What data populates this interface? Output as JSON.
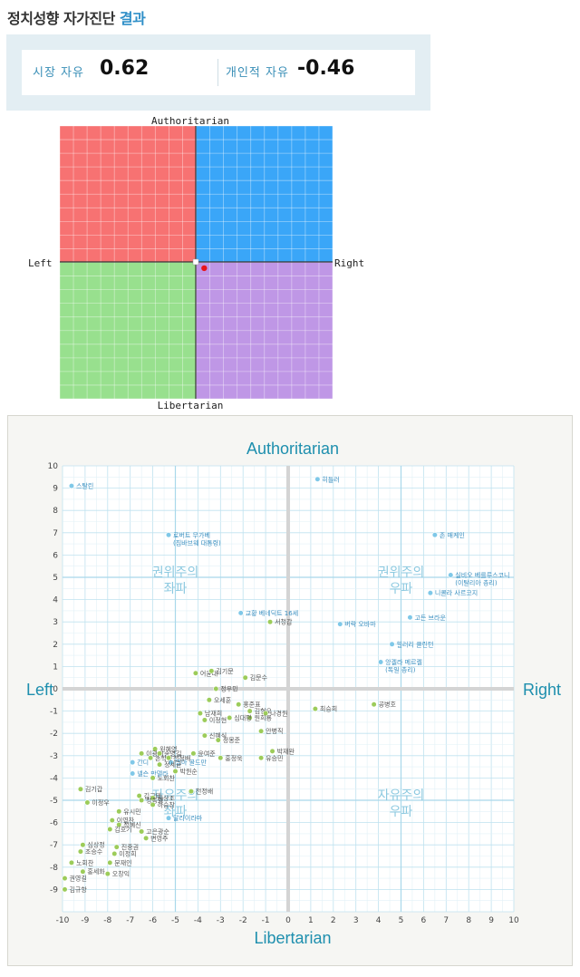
{
  "header": {
    "title_main": "정치성향 자가진단",
    "title_accent": "결과"
  },
  "scores": {
    "market_label": "시장 자유",
    "market_value": "0.62",
    "personal_label": "개인적 자유",
    "personal_value": "-0.46"
  },
  "compass": {
    "top": "Authoritarian",
    "bottom": "Libertarian",
    "left": "Left",
    "right": "Right",
    "colors": {
      "auth_left": "#f77272",
      "auth_right": "#3aa6f8",
      "lib_left": "#98e08e",
      "lib_right": "#bf97e6"
    },
    "marker": {
      "x": 0.62,
      "y": -0.46,
      "color": "#e8141b"
    }
  },
  "chart_data": {
    "type": "scatter",
    "title": "",
    "axis_labels": {
      "top": "Authoritarian",
      "bottom": "Libertarian",
      "left": "Left",
      "right": "Right"
    },
    "xlim": [
      -10,
      10
    ],
    "ylim": [
      -10,
      10
    ],
    "x_ticks": [
      -10,
      -9,
      -8,
      -7,
      -6,
      -5,
      -4,
      -3,
      -2,
      -1,
      0,
      1,
      2,
      3,
      4,
      5,
      6,
      7,
      8,
      9,
      10
    ],
    "y_ticks": [
      10,
      9,
      8,
      7,
      6,
      5,
      4,
      3,
      2,
      1,
      0,
      -1,
      -2,
      -3,
      -4,
      -5,
      -6,
      -7,
      -8,
      -9
    ],
    "grid": true,
    "quadrant_labels": [
      {
        "line1": "권위주의",
        "line2": "좌파",
        "x": -5,
        "y": 5
      },
      {
        "line1": "권위주의",
        "line2": "우파",
        "x": 5,
        "y": 5
      },
      {
        "line1": "자유주의",
        "line2": "좌파",
        "x": -5,
        "y": -5
      },
      {
        "line1": "자유주의",
        "line2": "우파",
        "x": 5,
        "y": -5
      }
    ],
    "series": [
      {
        "color": "#7fc8e8",
        "points": [
          {
            "label": "스탈린",
            "x": -9.6,
            "y": 9.1
          },
          {
            "label": "로버트 무가베",
            "label2": "(짐바브웨 대통령)",
            "x": -5.3,
            "y": 6.9
          },
          {
            "label": "교황 베네딕트 16세",
            "x": -2.1,
            "y": 3.4
          },
          {
            "label": "히틀러",
            "x": 1.3,
            "y": 9.4
          },
          {
            "label": "존 매케인",
            "x": 6.5,
            "y": 6.9
          },
          {
            "label": "실비오 베를루스코니",
            "label2": "(이탈리아 총리)",
            "x": 7.2,
            "y": 5.1
          },
          {
            "label": "니콜라 사르코지",
            "x": 6.3,
            "y": 4.3
          },
          {
            "label": "고든 브라운",
            "x": 5.4,
            "y": 3.2
          },
          {
            "label": "버락 오바마",
            "x": 2.3,
            "y": 2.9
          },
          {
            "label": "힐러리 클린턴",
            "x": 4.6,
            "y": 2.0
          },
          {
            "label": "앙겔라 메르켈",
            "label2": "(독일 총리)",
            "x": 4.1,
            "y": 1.2
          },
          {
            "label": "간디",
            "x": -6.9,
            "y": -3.3
          },
          {
            "label": "넬슨 만델라",
            "x": -6.9,
            "y": -3.8
          },
          {
            "label": "엠마 골드만",
            "x": -5.2,
            "y": -3.3
          },
          {
            "label": "달라이라마",
            "x": -5.3,
            "y": -5.8
          }
        ]
      },
      {
        "color": "#9ccc5a",
        "points": [
          {
            "label": "서청갑",
            "x": -0.8,
            "y": 3.0
          },
          {
            "label": "어윤대",
            "x": -4.1,
            "y": 0.7
          },
          {
            "label": "김기문",
            "x": -3.4,
            "y": 0.8
          },
          {
            "label": "김문수",
            "x": -1.9,
            "y": 0.5
          },
          {
            "label": "정우민",
            "x": -3.2,
            "y": 0.0
          },
          {
            "label": "오세훈",
            "x": -3.5,
            "y": -0.5
          },
          {
            "label": "홍준표",
            "x": -2.2,
            "y": -0.7
          },
          {
            "label": "남재희",
            "x": -3.9,
            "y": -1.1
          },
          {
            "label": "김형오",
            "x": -1.7,
            "y": -1.0
          },
          {
            "label": "나경원",
            "x": -1.0,
            "y": -1.1
          },
          {
            "label": "원희룡",
            "x": -1.7,
            "y": -1.3
          },
          {
            "label": "이정현",
            "x": -3.7,
            "y": -1.4
          },
          {
            "label": "심대평",
            "x": -2.6,
            "y": -1.3
          },
          {
            "label": "안병직",
            "x": -1.2,
            "y": -1.9
          },
          {
            "label": "신혜식",
            "x": -3.7,
            "y": -2.1
          },
          {
            "label": "정몽준",
            "x": -3.1,
            "y": -2.3
          },
          {
            "label": "원혜영",
            "x": -5.9,
            "y": -2.7
          },
          {
            "label": "이광재",
            "x": -6.5,
            "y": -2.9
          },
          {
            "label": "송영길",
            "x": -5.7,
            "y": -2.9
          },
          {
            "label": "윤여준",
            "x": -4.2,
            "y": -2.9
          },
          {
            "label": "박재완",
            "x": -0.7,
            "y": -2.8
          },
          {
            "label": "손학규",
            "x": -6.1,
            "y": -3.1
          },
          {
            "label": "천정배",
            "x": -5.3,
            "y": -3.1
          },
          {
            "label": "홍정욱",
            "x": -3.0,
            "y": -3.1
          },
          {
            "label": "유승민",
            "x": -1.2,
            "y": -3.1
          },
          {
            "label": "정세균",
            "x": -5.7,
            "y": -3.4
          },
          {
            "label": "박원순",
            "x": -5.0,
            "y": -3.7
          },
          {
            "label": "노회찬",
            "x": -6.0,
            "y": -4.0
          },
          {
            "label": "김기갑",
            "x": -9.2,
            "y": -4.5
          },
          {
            "label": "김근태",
            "x": -6.6,
            "y": -4.8
          },
          {
            "label": "천정배",
            "x": -4.3,
            "y": -4.6
          },
          {
            "label": "김상조",
            "x": -6.0,
            "y": -4.9
          },
          {
            "label": "정동영",
            "x": -6.5,
            "y": -5.0
          },
          {
            "label": "이정우",
            "x": -8.9,
            "y": -5.1
          },
          {
            "label": "하승창",
            "x": -6.0,
            "y": -5.2
          },
          {
            "label": "유시민",
            "x": -7.5,
            "y": -5.5
          },
          {
            "label": "이영찬",
            "x": -7.8,
            "y": -5.9
          },
          {
            "label": "정혜신",
            "x": -7.5,
            "y": -6.1
          },
          {
            "label": "김호기",
            "x": -7.9,
            "y": -6.3
          },
          {
            "label": "고은광순",
            "x": -6.5,
            "y": -6.4
          },
          {
            "label": "변영주",
            "x": -6.3,
            "y": -6.7
          },
          {
            "label": "심상정",
            "x": -9.1,
            "y": -7.0
          },
          {
            "label": "진중권",
            "x": -7.6,
            "y": -7.1
          },
          {
            "label": "조승수",
            "x": -9.2,
            "y": -7.3
          },
          {
            "label": "이정희",
            "x": -7.7,
            "y": -7.4
          },
          {
            "label": "노회찬",
            "x": -9.6,
            "y": -7.8
          },
          {
            "label": "문재인",
            "x": -7.9,
            "y": -7.8
          },
          {
            "label": "홍세화",
            "x": -9.1,
            "y": -8.2
          },
          {
            "label": "오창익",
            "x": -8.0,
            "y": -8.3
          },
          {
            "label": "권영길",
            "x": -9.9,
            "y": -8.5
          },
          {
            "label": "김규항",
            "x": -9.9,
            "y": -9.0
          },
          {
            "label": "최승희",
            "x": 1.2,
            "y": -0.9
          },
          {
            "label": "공병호",
            "x": 3.8,
            "y": -0.7
          }
        ]
      }
    ]
  }
}
